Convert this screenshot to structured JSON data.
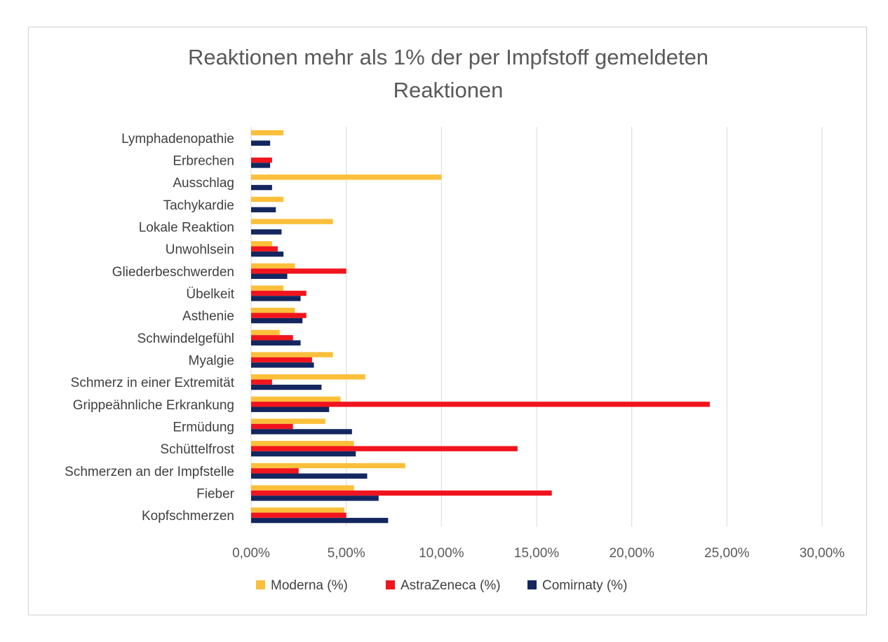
{
  "chart_data": {
    "type": "bar",
    "orientation": "horizontal",
    "title_lines": [
      "Reaktionen mehr als 1% der per Impfstoff gemeldeten",
      "Reaktionen"
    ],
    "xlabel": "",
    "ylabel": "",
    "xlim": [
      0,
      30
    ],
    "x_ticks": [
      "0,00%",
      "5,00%",
      "10,00%",
      "15,00%",
      "20,00%",
      "25,00%",
      "30,00%"
    ],
    "grid": "vertical",
    "legend_position": "bottom",
    "categories": [
      "Lymphadenopathie",
      "Erbrechen",
      "Ausschlag",
      "Tachykardie",
      "Lokale Reaktion",
      "Unwohlsein",
      "Gliederbeschwerden",
      "Übelkeit",
      "Asthenie",
      "Schwindelgefühl",
      "Myalgie",
      "Schmerz in einer Extremität",
      "Grippeähnliche Erkrankung",
      "Ermüdung",
      "Schüttelfrost",
      "Schmerzen an der Impfstelle",
      "Fieber",
      "Kopfschmerzen"
    ],
    "series": [
      {
        "name": "Moderna (%)",
        "color": "#FBBF3A",
        "values": [
          1.7,
          null,
          10.0,
          1.7,
          4.3,
          1.1,
          2.3,
          1.7,
          2.3,
          1.5,
          4.3,
          6.0,
          4.7,
          3.9,
          5.4,
          8.1,
          5.4,
          4.9
        ]
      },
      {
        "name": "AstraZeneca (%)",
        "color": "#F0141E",
        "values": [
          null,
          1.1,
          null,
          null,
          null,
          1.4,
          5.0,
          2.9,
          2.9,
          2.2,
          3.2,
          1.1,
          24.1,
          2.2,
          14.0,
          2.5,
          15.8,
          5.0
        ]
      },
      {
        "name": "Comirnaty (%)",
        "color": "#13265F",
        "values": [
          1.0,
          1.0,
          1.1,
          1.3,
          1.6,
          1.7,
          1.9,
          2.6,
          2.7,
          2.6,
          3.3,
          3.7,
          4.1,
          5.3,
          5.5,
          6.1,
          6.7,
          7.2
        ]
      }
    ]
  }
}
